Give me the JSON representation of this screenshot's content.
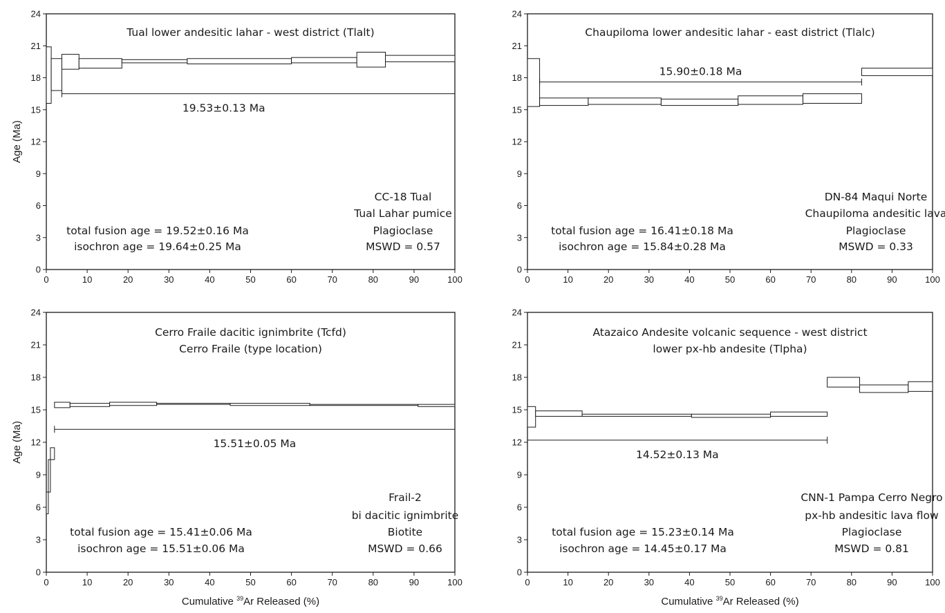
{
  "chart_data": [
    {
      "type": "step",
      "xlabel": "",
      "ylabel": "Age (Ma)",
      "xlim": [
        0,
        100
      ],
      "ylim": [
        0,
        24
      ],
      "xticks": [
        0,
        10,
        20,
        30,
        40,
        50,
        60,
        70,
        80,
        90,
        100
      ],
      "yticks": [
        0,
        3,
        6,
        9,
        12,
        15,
        18,
        21,
        24
      ],
      "title_lines": [
        "Tual lower andesitic lahar - west district (Tlalt)"
      ],
      "sample_lines": [
        "CC-18 Tual",
        "Tual Lahar pumice",
        "Plagioclase",
        "MSWD = 0.57"
      ],
      "age_lines": [
        "total fusion age = 19.52±0.16 Ma",
        "isochron age = 19.64±0.25 Ma"
      ],
      "plateau": {
        "label": "19.53±0.13 Ma",
        "x_start": 3.8,
        "x_end": 100,
        "y": 16.5,
        "label_pos": "below"
      },
      "steps": [
        {
          "x0": 0.0,
          "x1": 1.2,
          "lo": 15.6,
          "hi": 20.9
        },
        {
          "x0": 1.2,
          "x1": 3.8,
          "lo": 16.8,
          "hi": 19.8
        },
        {
          "x0": 3.8,
          "x1": 8.0,
          "lo": 18.8,
          "hi": 20.2
        },
        {
          "x0": 8.0,
          "x1": 18.5,
          "lo": 18.9,
          "hi": 19.8
        },
        {
          "x0": 18.5,
          "x1": 34.5,
          "lo": 19.4,
          "hi": 19.7
        },
        {
          "x0": 34.5,
          "x1": 60.0,
          "lo": 19.3,
          "hi": 19.8
        },
        {
          "x0": 60.0,
          "x1": 76.0,
          "lo": 19.4,
          "hi": 19.9
        },
        {
          "x0": 76.0,
          "x1": 83.0,
          "lo": 19.0,
          "hi": 20.4
        },
        {
          "x0": 83.0,
          "x1": 100.0,
          "lo": 19.5,
          "hi": 20.1
        }
      ]
    },
    {
      "type": "step",
      "xlabel": "",
      "ylabel": "",
      "xlim": [
        0,
        100
      ],
      "ylim": [
        0,
        24
      ],
      "xticks": [
        0,
        10,
        20,
        30,
        40,
        50,
        60,
        70,
        80,
        90,
        100
      ],
      "yticks": [
        0,
        3,
        6,
        9,
        12,
        15,
        18,
        21,
        24
      ],
      "title_lines": [
        "Chaupiloma lower andesitic lahar - east district (Tlalc)"
      ],
      "sample_lines": [
        "DN-84 Maqui Norte",
        "Chaupiloma andesitic lava",
        "Plagioclase",
        "MSWD = 0.33"
      ],
      "age_lines": [
        "total fusion age = 16.41±0.18 Ma",
        "isochron age = 15.84±0.28 Ma"
      ],
      "plateau": {
        "label": "15.90±0.18 Ma",
        "x_start": 3.0,
        "x_end": 82.5,
        "y": 17.6,
        "label_pos": "above"
      },
      "steps": [
        {
          "x0": 0.0,
          "x1": 3.0,
          "lo": 15.3,
          "hi": 19.8
        },
        {
          "x0": 3.0,
          "x1": 15.0,
          "lo": 15.4,
          "hi": 16.1
        },
        {
          "x0": 15.0,
          "x1": 33.0,
          "lo": 15.5,
          "hi": 16.1
        },
        {
          "x0": 33.0,
          "x1": 52.0,
          "lo": 15.4,
          "hi": 16.0
        },
        {
          "x0": 52.0,
          "x1": 68.0,
          "lo": 15.5,
          "hi": 16.3
        },
        {
          "x0": 68.0,
          "x1": 82.5,
          "lo": 15.6,
          "hi": 16.5
        },
        {
          "x0": 82.5,
          "x1": 100.0,
          "lo": 18.2,
          "hi": 18.9
        }
      ]
    },
    {
      "type": "step",
      "xlabel": "Cumulative 39Ar Released (%)",
      "ylabel": "Age (Ma)",
      "xlim": [
        0,
        100
      ],
      "ylim": [
        0,
        24
      ],
      "xticks": [
        0,
        10,
        20,
        30,
        40,
        50,
        60,
        70,
        80,
        90,
        100
      ],
      "yticks": [
        0,
        3,
        6,
        9,
        12,
        15,
        18,
        21,
        24
      ],
      "title_lines": [
        "Cerro Fraile dacitic ignimbrite (Tcfd)",
        "Cerro Fraile (type location)"
      ],
      "sample_lines": [
        "Frail-2",
        "bi dacitic ignimbrite",
        "Biotite",
        "MSWD = 0.66"
      ],
      "age_lines": [
        "total fusion age = 15.41±0.06 Ma",
        "isochron age = 15.51±0.06 Ma"
      ],
      "plateau": {
        "label": "15.51±0.05 Ma",
        "x_start": 2.0,
        "x_end": 100,
        "y": 13.2,
        "label_pos": "below"
      },
      "steps": [
        {
          "x0": 0.0,
          "x1": 0.5,
          "lo": 5.4,
          "hi": 7.4
        },
        {
          "x0": 0.5,
          "x1": 1.0,
          "lo": 7.4,
          "hi": 10.4
        },
        {
          "x0": 1.0,
          "x1": 2.0,
          "lo": 10.4,
          "hi": 11.5
        },
        {
          "x0": 2.0,
          "x1": 5.8,
          "lo": 15.2,
          "hi": 15.7
        },
        {
          "x0": 5.8,
          "x1": 15.5,
          "lo": 15.3,
          "hi": 15.6
        },
        {
          "x0": 15.5,
          "x1": 27.0,
          "lo": 15.4,
          "hi": 15.7
        },
        {
          "x0": 27.0,
          "x1": 45.0,
          "lo": 15.5,
          "hi": 15.6
        },
        {
          "x0": 45.0,
          "x1": 64.5,
          "lo": 15.4,
          "hi": 15.6
        },
        {
          "x0": 64.5,
          "x1": 91.0,
          "lo": 15.4,
          "hi": 15.5
        },
        {
          "x0": 91.0,
          "x1": 100.0,
          "lo": 15.3,
          "hi": 15.5
        }
      ]
    },
    {
      "type": "step",
      "xlabel": "Cumulative 39Ar Released (%)",
      "ylabel": "",
      "xlim": [
        0,
        100
      ],
      "ylim": [
        0,
        24
      ],
      "xticks": [
        0,
        10,
        20,
        30,
        40,
        50,
        60,
        70,
        80,
        90,
        100
      ],
      "yticks": [
        0,
        3,
        6,
        9,
        12,
        15,
        18,
        21,
        24
      ],
      "title_lines": [
        "Atazaico Andesite volcanic sequence - west district",
        "lower px-hb andesite (Tlpha)"
      ],
      "sample_lines": [
        "CNN-1 Pampa Cerro Negro",
        "px-hb andesitic lava flow",
        "Plagioclase",
        "MSWD = 0.81"
      ],
      "age_lines": [
        "total fusion age = 15.23±0.14 Ma",
        "isochron age = 14.45±0.17 Ma"
      ],
      "plateau": {
        "label": "14.52±0.13 Ma",
        "x_start": 0.0,
        "x_end": 74.0,
        "y": 12.2,
        "label_pos": "below"
      },
      "steps": [
        {
          "x0": 0.0,
          "x1": 2.0,
          "lo": 13.4,
          "hi": 15.3
        },
        {
          "x0": 2.0,
          "x1": 13.5,
          "lo": 14.4,
          "hi": 14.9
        },
        {
          "x0": 13.5,
          "x1": 40.5,
          "lo": 14.4,
          "hi": 14.6
        },
        {
          "x0": 40.5,
          "x1": 60.0,
          "lo": 14.3,
          "hi": 14.6
        },
        {
          "x0": 60.0,
          "x1": 74.0,
          "lo": 14.4,
          "hi": 14.8
        },
        {
          "x0": 74.0,
          "x1": 82.0,
          "lo": 17.1,
          "hi": 18.0
        },
        {
          "x0": 82.0,
          "x1": 94.0,
          "lo": 16.6,
          "hi": 17.3
        },
        {
          "x0": 94.0,
          "x1": 100.0,
          "lo": 16.7,
          "hi": 17.6
        }
      ]
    }
  ]
}
